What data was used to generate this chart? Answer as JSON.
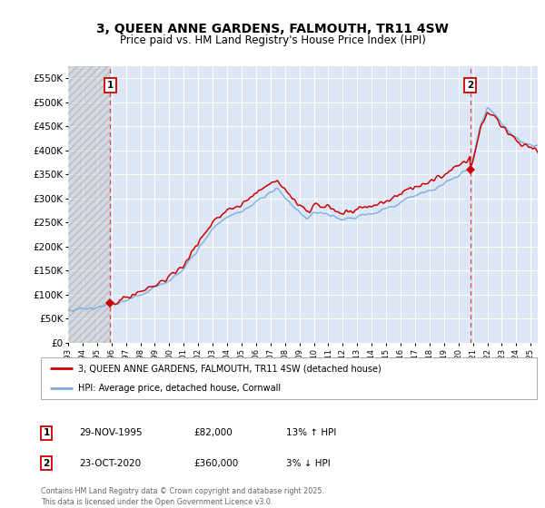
{
  "title": "3, QUEEN ANNE GARDENS, FALMOUTH, TR11 4SW",
  "subtitle": "Price paid vs. HM Land Registry's House Price Index (HPI)",
  "ylim": [
    0,
    575000
  ],
  "yticks": [
    0,
    50000,
    100000,
    150000,
    200000,
    250000,
    300000,
    350000,
    400000,
    450000,
    500000,
    550000
  ],
  "ytick_labels": [
    "£0",
    "£50K",
    "£100K",
    "£150K",
    "£200K",
    "£250K",
    "£300K",
    "£350K",
    "£400K",
    "£450K",
    "£500K",
    "£550K"
  ],
  "xlim_start": 1993.0,
  "xlim_end": 2025.5,
  "background_color": "#ffffff",
  "plot_bg_color": "#dce6f5",
  "grid_color": "#ffffff",
  "sale1_date": 1995.91,
  "sale1_price": 82000,
  "sale2_date": 2020.81,
  "sale2_price": 360000,
  "legend_line1": "3, QUEEN ANNE GARDENS, FALMOUTH, TR11 4SW (detached house)",
  "legend_line2": "HPI: Average price, detached house, Cornwall",
  "footer": "Contains HM Land Registry data © Crown copyright and database right 2025.\nThis data is licensed under the Open Government Licence v3.0.",
  "line_color_red": "#cc0000",
  "line_color_blue": "#7aaddb",
  "title_fontsize": 10,
  "subtitle_fontsize": 8.5,
  "axis_fontsize": 7.5
}
